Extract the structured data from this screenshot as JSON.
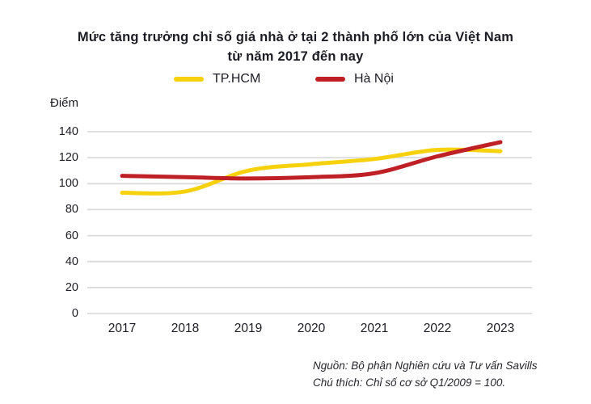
{
  "title": {
    "line1": "Mức tăng trưởng chỉ số giá nhà ở tại 2 thành phố lớn của Việt Nam",
    "line2": "từ năm 2017 đến nay"
  },
  "legend": [
    {
      "label": "TP.HCM",
      "color": "#F6D10D"
    },
    {
      "label": "Hà Nội",
      "color": "#BE2026"
    }
  ],
  "footer": {
    "source": "Nguồn: Bộ phận Nghiên cứu và Tư vấn Savills",
    "note": "Chú thích: Chỉ số cơ sở Q1/2009 = 100."
  },
  "chart_data": {
    "type": "line",
    "title": "Mức tăng trưởng chỉ số giá nhà ở tại 2 thành phố lớn của Việt Nam từ năm 2017 đến nay",
    "x": [
      2017,
      2018,
      2019,
      2020,
      2021,
      2022,
      2023
    ],
    "series": [
      {
        "name": "TP.HCM",
        "color": "#F6D10D",
        "values": [
          93,
          94,
          110,
          115,
          119,
          126,
          125
        ]
      },
      {
        "name": "Hà Nội",
        "color": "#BE2026",
        "values": [
          106,
          105,
          104,
          105,
          108,
          121,
          132
        ]
      }
    ],
    "xlabel": "",
    "ylabel": "Điểm",
    "ylim": [
      0,
      140
    ],
    "yticks": [
      0,
      20,
      40,
      60,
      80,
      100,
      120,
      140
    ],
    "grid": true,
    "gridline_color": "#dbdbdb",
    "legend_position": "top",
    "annotations": [
      "Nguồn: Bộ phận Nghiên cứu và Tư vấn Savills",
      "Chú thích: Chỉ số cơ sở Q1/2009 = 100."
    ]
  }
}
